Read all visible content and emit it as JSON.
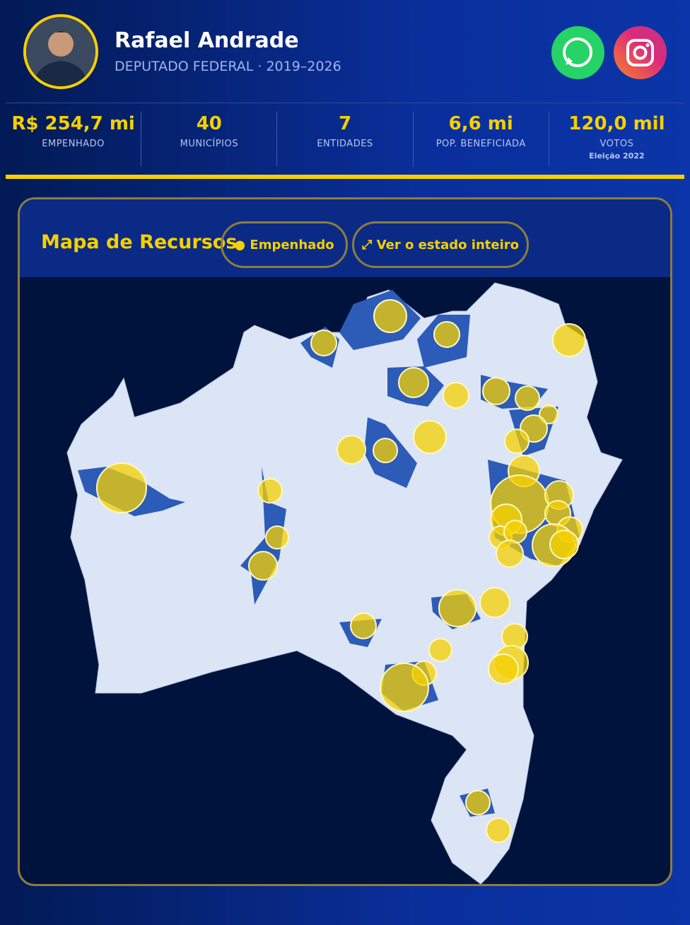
{
  "header": {
    "name": "Rafael Andrade",
    "subtitle": "DEPUTADO FEDERAL · 2019–2026"
  },
  "stats": [
    {
      "value": "R$ 254,7 mi",
      "label": "EMPENHADO"
    },
    {
      "value": "40",
      "label": "MUNICÍPIOS"
    },
    {
      "value": "7",
      "label": "ENTIDADES"
    },
    {
      "value": "6,6 mi",
      "label": "POP. BENEFICIADA"
    },
    {
      "value": "120,0 mil",
      "label": "VOTOS",
      "note": "Eleição 2022"
    }
  ],
  "map": {
    "title": "Mapa de Recursos",
    "buttons": [
      "● Empenhado",
      "⤢ Ver o estado inteiro"
    ]
  }
}
